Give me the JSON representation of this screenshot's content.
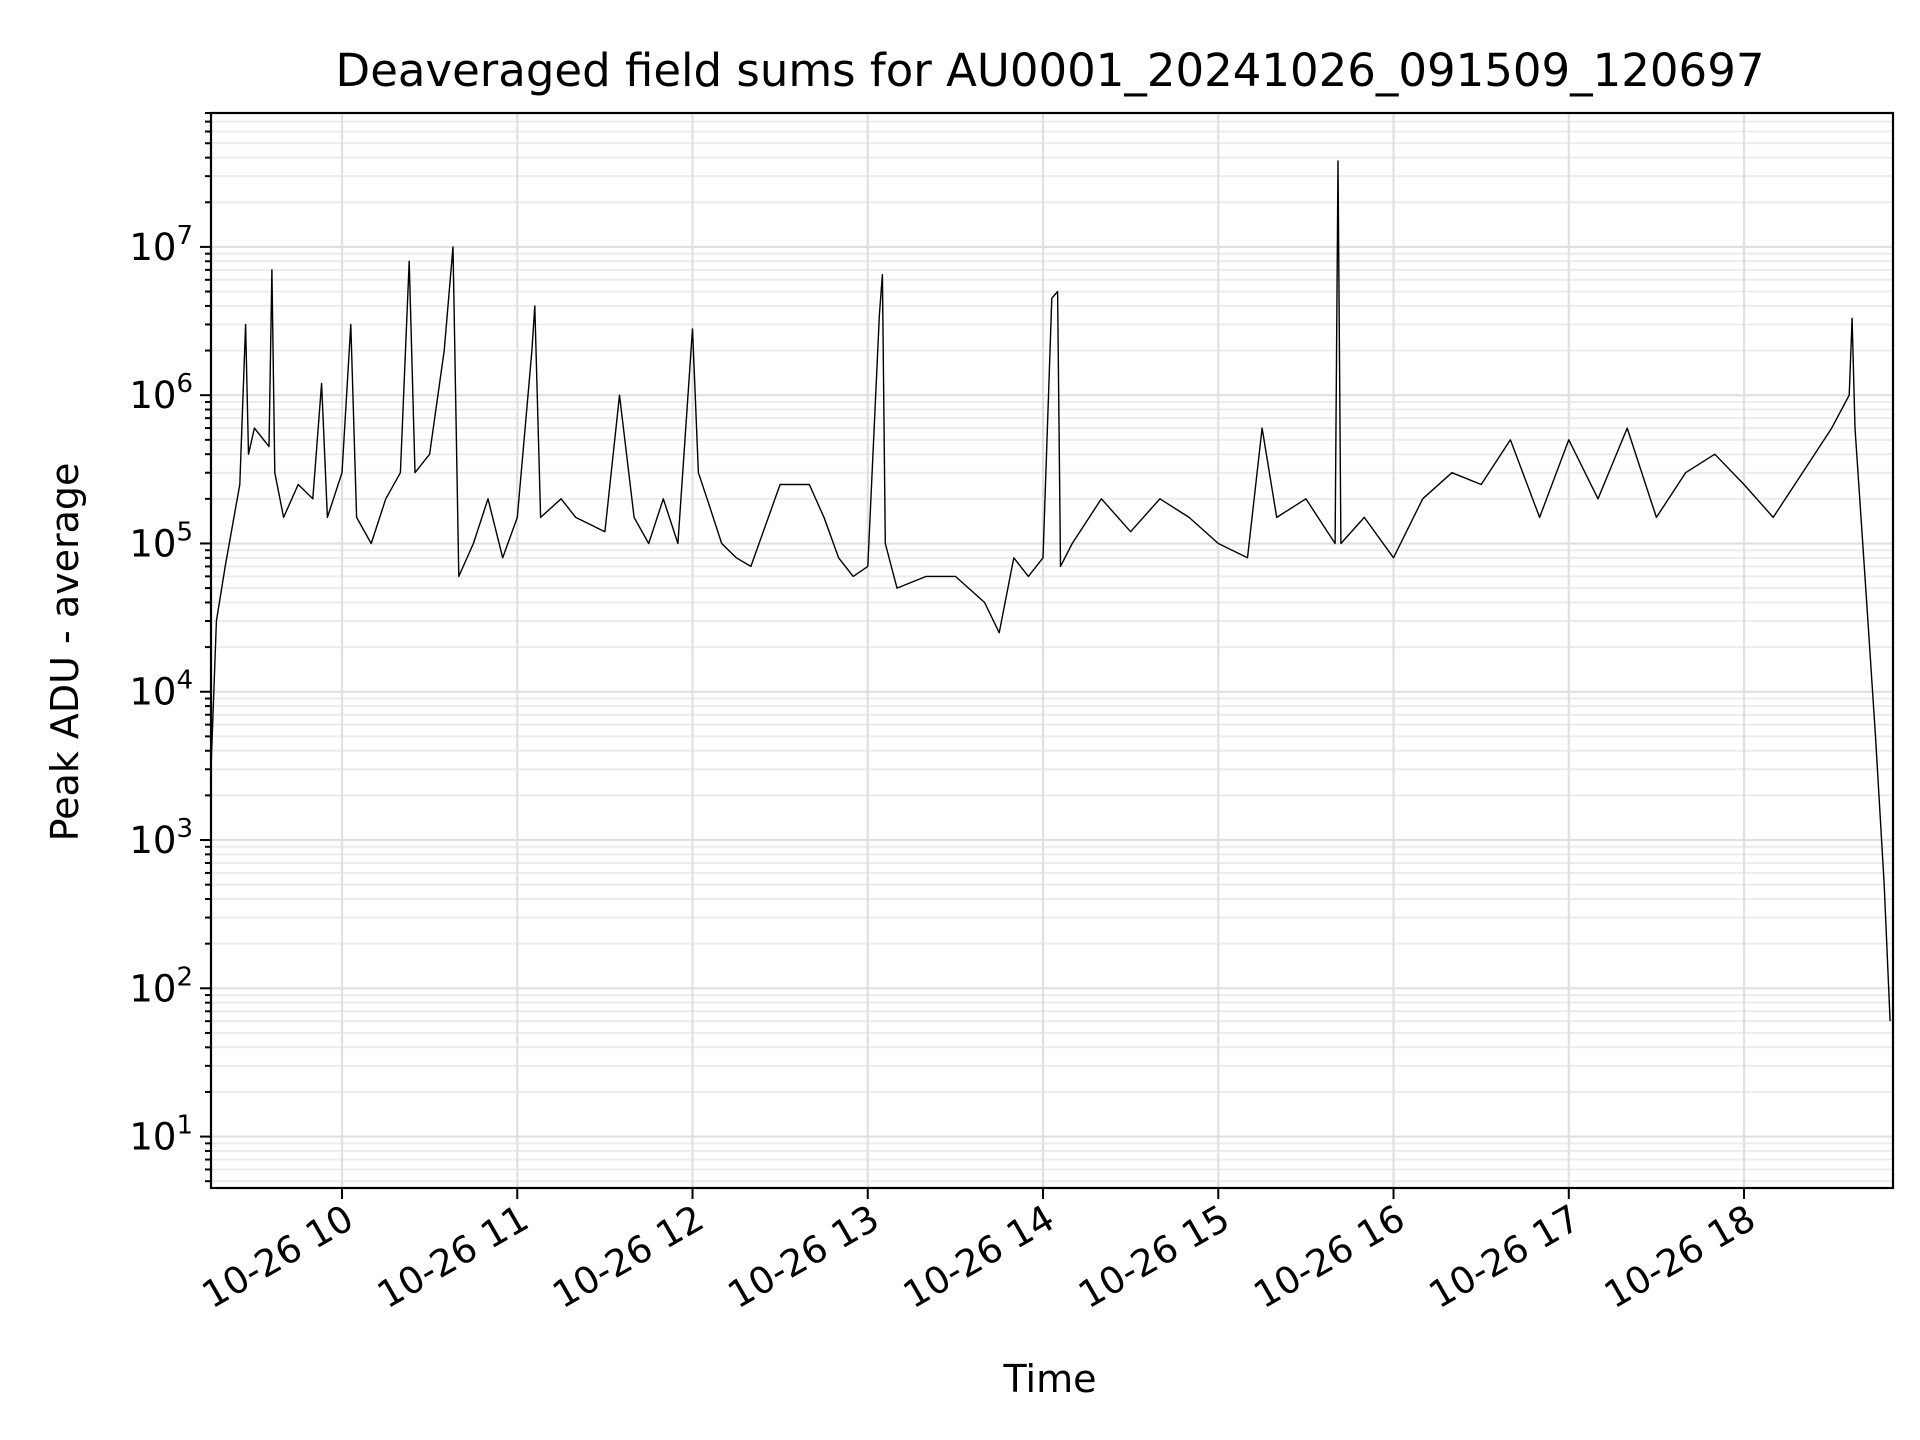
{
  "chart_data": {
    "type": "line",
    "title": "Deaveraged field sums for AU0001_20241026_091509_120697",
    "xlabel": "Time",
    "ylabel": "Peak ADU - average",
    "yscale": "log",
    "ylim": [
      4.5,
      80000000
    ],
    "xlim": [
      "2024-10-26 09:15:09",
      "2024-10-26 18:51:00"
    ],
    "grid": true,
    "x_ticks": [
      {
        "x": "2024-10-26 10:00",
        "label": "10-26 10"
      },
      {
        "x": "2024-10-26 11:00",
        "label": "10-26 11"
      },
      {
        "x": "2024-10-26 12:00",
        "label": "10-26 12"
      },
      {
        "x": "2024-10-26 13:00",
        "label": "10-26 13"
      },
      {
        "x": "2024-10-26 14:00",
        "label": "10-26 14"
      },
      {
        "x": "2024-10-26 15:00",
        "label": "10-26 15"
      },
      {
        "x": "2024-10-26 16:00",
        "label": "10-26 16"
      },
      {
        "x": "2024-10-26 17:00",
        "label": "10-26 17"
      },
      {
        "x": "2024-10-26 18:00",
        "label": "10-26 18"
      }
    ],
    "y_ticks": [
      {
        "value": 10,
        "base": "10",
        "exp": "1"
      },
      {
        "value": 100,
        "base": "10",
        "exp": "2"
      },
      {
        "value": 1000,
        "base": "10",
        "exp": "3"
      },
      {
        "value": 10000,
        "base": "10",
        "exp": "4"
      },
      {
        "value": 100000,
        "base": "10",
        "exp": "5"
      },
      {
        "value": 1000000,
        "base": "10",
        "exp": "6"
      },
      {
        "value": 10000000,
        "base": "10",
        "exp": "7"
      }
    ],
    "series": [
      {
        "color": "#000000",
        "points": [
          [
            "2024-10-26 09:15",
            2500
          ],
          [
            "2024-10-26 09:17",
            30000
          ],
          [
            "2024-10-26 09:20",
            70000
          ],
          [
            "2024-10-26 09:25",
            250000
          ],
          [
            "2024-10-26 09:27",
            3000000
          ],
          [
            "2024-10-26 09:28",
            400000
          ],
          [
            "2024-10-26 09:30",
            600000
          ],
          [
            "2024-10-26 09:35",
            450000
          ],
          [
            "2024-10-26 09:36",
            7000000
          ],
          [
            "2024-10-26 09:37",
            300000
          ],
          [
            "2024-10-26 09:40",
            150000
          ],
          [
            "2024-10-26 09:45",
            250000
          ],
          [
            "2024-10-26 09:50",
            200000
          ],
          [
            "2024-10-26 09:53",
            1200000
          ],
          [
            "2024-10-26 09:55",
            150000
          ],
          [
            "2024-10-26 10:00",
            300000
          ],
          [
            "2024-10-26 10:03",
            3000000
          ],
          [
            "2024-10-26 10:05",
            150000
          ],
          [
            "2024-10-26 10:10",
            100000
          ],
          [
            "2024-10-26 10:15",
            200000
          ],
          [
            "2024-10-26 10:20",
            300000
          ],
          [
            "2024-10-26 10:23",
            8000000
          ],
          [
            "2024-10-26 10:25",
            300000
          ],
          [
            "2024-10-26 10:30",
            400000
          ],
          [
            "2024-10-26 10:35",
            2000000
          ],
          [
            "2024-10-26 10:38",
            10000000
          ],
          [
            "2024-10-26 10:40",
            60000
          ],
          [
            "2024-10-26 10:45",
            100000
          ],
          [
            "2024-10-26 10:50",
            200000
          ],
          [
            "2024-10-26 10:55",
            80000
          ],
          [
            "2024-10-26 11:00",
            150000
          ],
          [
            "2024-10-26 11:05",
            2000000
          ],
          [
            "2024-10-26 11:06",
            4000000
          ],
          [
            "2024-10-26 11:08",
            150000
          ],
          [
            "2024-10-26 11:15",
            200000
          ],
          [
            "2024-10-26 11:20",
            150000
          ],
          [
            "2024-10-26 11:30",
            120000
          ],
          [
            "2024-10-26 11:35",
            1000000
          ],
          [
            "2024-10-26 11:40",
            150000
          ],
          [
            "2024-10-26 11:45",
            100000
          ],
          [
            "2024-10-26 11:50",
            200000
          ],
          [
            "2024-10-26 11:55",
            100000
          ],
          [
            "2024-10-26 12:00",
            2800000
          ],
          [
            "2024-10-26 12:02",
            300000
          ],
          [
            "2024-10-26 12:05",
            200000
          ],
          [
            "2024-10-26 12:10",
            100000
          ],
          [
            "2024-10-26 12:15",
            80000
          ],
          [
            "2024-10-26 12:20",
            70000
          ],
          [
            "2024-10-26 12:30",
            250000
          ],
          [
            "2024-10-26 12:40",
            250000
          ],
          [
            "2024-10-26 12:45",
            150000
          ],
          [
            "2024-10-26 12:50",
            80000
          ],
          [
            "2024-10-26 12:55",
            60000
          ],
          [
            "2024-10-26 13:00",
            70000
          ],
          [
            "2024-10-26 13:04",
            3500000
          ],
          [
            "2024-10-26 13:05",
            6500000
          ],
          [
            "2024-10-26 13:06",
            100000
          ],
          [
            "2024-10-26 13:10",
            50000
          ],
          [
            "2024-10-26 13:20",
            60000
          ],
          [
            "2024-10-26 13:30",
            60000
          ],
          [
            "2024-10-26 13:40",
            40000
          ],
          [
            "2024-10-26 13:45",
            25000
          ],
          [
            "2024-10-26 13:50",
            80000
          ],
          [
            "2024-10-26 13:55",
            60000
          ],
          [
            "2024-10-26 14:00",
            80000
          ],
          [
            "2024-10-26 14:03",
            4500000
          ],
          [
            "2024-10-26 14:05",
            5000000
          ],
          [
            "2024-10-26 14:06",
            70000
          ],
          [
            "2024-10-26 14:10",
            100000
          ],
          [
            "2024-10-26 14:20",
            200000
          ],
          [
            "2024-10-26 14:30",
            120000
          ],
          [
            "2024-10-26 14:40",
            200000
          ],
          [
            "2024-10-26 14:50",
            150000
          ],
          [
            "2024-10-26 15:00",
            100000
          ],
          [
            "2024-10-26 15:10",
            80000
          ],
          [
            "2024-10-26 15:15",
            600000
          ],
          [
            "2024-10-26 15:20",
            150000
          ],
          [
            "2024-10-26 15:30",
            200000
          ],
          [
            "2024-10-26 15:40",
            100000
          ],
          [
            "2024-10-26 15:41",
            38000000
          ],
          [
            "2024-10-26 15:42",
            100000
          ],
          [
            "2024-10-26 15:50",
            150000
          ],
          [
            "2024-10-26 16:00",
            80000
          ],
          [
            "2024-10-26 16:10",
            200000
          ],
          [
            "2024-10-26 16:20",
            300000
          ],
          [
            "2024-10-26 16:30",
            250000
          ],
          [
            "2024-10-26 16:40",
            500000
          ],
          [
            "2024-10-26 16:50",
            150000
          ],
          [
            "2024-10-26 17:00",
            500000
          ],
          [
            "2024-10-26 17:10",
            200000
          ],
          [
            "2024-10-26 17:20",
            600000
          ],
          [
            "2024-10-26 17:30",
            150000
          ],
          [
            "2024-10-26 17:40",
            300000
          ],
          [
            "2024-10-26 17:50",
            400000
          ],
          [
            "2024-10-26 18:00",
            250000
          ],
          [
            "2024-10-26 18:10",
            150000
          ],
          [
            "2024-10-26 18:20",
            300000
          ],
          [
            "2024-10-26 18:30",
            600000
          ],
          [
            "2024-10-26 18:36",
            1000000
          ],
          [
            "2024-10-26 18:37",
            3300000
          ],
          [
            "2024-10-26 18:38",
            600000
          ],
          [
            "2024-10-26 18:42",
            40000
          ],
          [
            "2024-10-26 18:45",
            5000
          ],
          [
            "2024-10-26 18:48",
            500
          ],
          [
            "2024-10-26 18:50",
            60
          ]
        ]
      }
    ]
  }
}
